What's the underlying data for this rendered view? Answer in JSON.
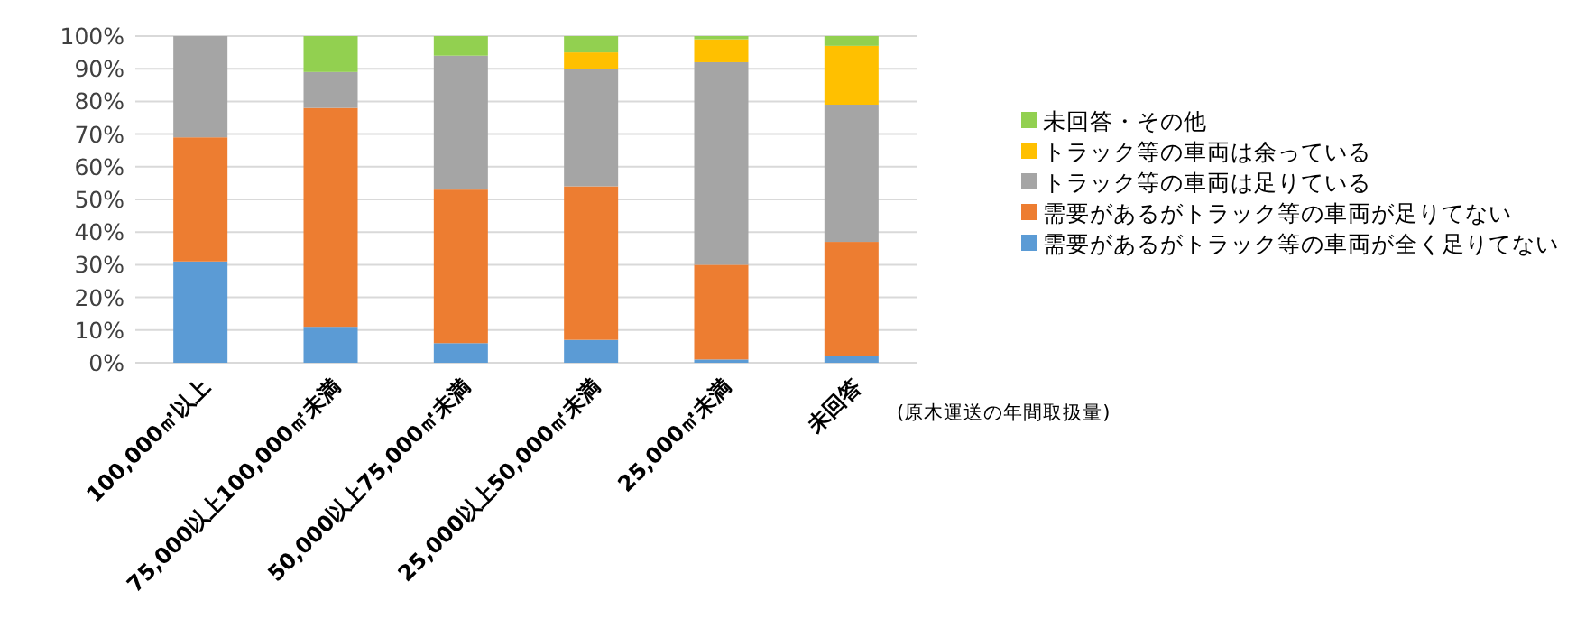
{
  "chart_data": {
    "type": "bar",
    "stacked": true,
    "xlabel": "(原木運送の年間取扱量)",
    "categories": [
      "100,000㎡以上",
      "75,000以上100,000㎡未満",
      "50,000以上75,000㎡未満",
      "25,000以上50,000㎡未満",
      "25,000㎡未満",
      "未回答"
    ],
    "series": [
      {
        "name": "需要があるがトラック等の車両が全く足りてない",
        "color": "#5b9bd5",
        "values": [
          31,
          11,
          6,
          7,
          1,
          2
        ]
      },
      {
        "name": "需要があるがトラック等の車両が足りてない",
        "color": "#ed7d31",
        "values": [
          38,
          67,
          47,
          47,
          29,
          35
        ]
      },
      {
        "name": "トラック等の車両は足りている",
        "color": "#a5a5a5",
        "values": [
          31,
          11,
          41,
          36,
          62,
          42
        ]
      },
      {
        "name": "トラック等の車両は余っている",
        "color": "#ffc000",
        "values": [
          0,
          0,
          0,
          5,
          7,
          18
        ]
      },
      {
        "name": "未回答・その他",
        "color": "#92d050",
        "values": [
          0,
          11,
          6,
          5,
          1,
          3
        ]
      }
    ],
    "ylim": [
      0,
      100
    ],
    "yticks": [
      {
        "value": 0,
        "label": "0%"
      },
      {
        "value": 10,
        "label": "10%"
      },
      {
        "value": 20,
        "label": "20%"
      },
      {
        "value": 30,
        "label": "30%"
      },
      {
        "value": 40,
        "label": "40%"
      },
      {
        "value": 50,
        "label": "50%"
      },
      {
        "value": 60,
        "label": "60%"
      },
      {
        "value": 70,
        "label": "70%"
      },
      {
        "value": 80,
        "label": "80%"
      },
      {
        "value": 90,
        "label": "90%"
      },
      {
        "value": 100,
        "label": "100%"
      }
    ],
    "grid": "y",
    "legend": "right"
  }
}
